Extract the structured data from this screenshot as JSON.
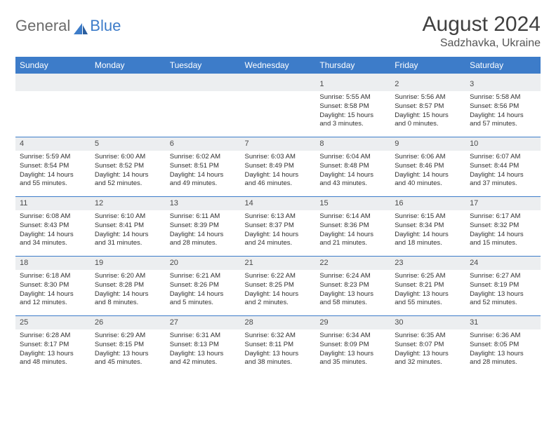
{
  "brand": {
    "part1": "General",
    "part2": "Blue"
  },
  "title": "August 2024",
  "location": "Sadzhavka, Ukraine",
  "colors": {
    "header_bar": "#3d7cc9",
    "num_bg": "#eceef0",
    "text": "#303030"
  },
  "dow": [
    "Sunday",
    "Monday",
    "Tuesday",
    "Wednesday",
    "Thursday",
    "Friday",
    "Saturday"
  ],
  "weeks": [
    [
      null,
      null,
      null,
      null,
      {
        "n": "1",
        "sr": "Sunrise: 5:55 AM",
        "ss": "Sunset: 8:58 PM",
        "dl1": "Daylight: 15 hours",
        "dl2": "and 3 minutes."
      },
      {
        "n": "2",
        "sr": "Sunrise: 5:56 AM",
        "ss": "Sunset: 8:57 PM",
        "dl1": "Daylight: 15 hours",
        "dl2": "and 0 minutes."
      },
      {
        "n": "3",
        "sr": "Sunrise: 5:58 AM",
        "ss": "Sunset: 8:56 PM",
        "dl1": "Daylight: 14 hours",
        "dl2": "and 57 minutes."
      }
    ],
    [
      {
        "n": "4",
        "sr": "Sunrise: 5:59 AM",
        "ss": "Sunset: 8:54 PM",
        "dl1": "Daylight: 14 hours",
        "dl2": "and 55 minutes."
      },
      {
        "n": "5",
        "sr": "Sunrise: 6:00 AM",
        "ss": "Sunset: 8:52 PM",
        "dl1": "Daylight: 14 hours",
        "dl2": "and 52 minutes."
      },
      {
        "n": "6",
        "sr": "Sunrise: 6:02 AM",
        "ss": "Sunset: 8:51 PM",
        "dl1": "Daylight: 14 hours",
        "dl2": "and 49 minutes."
      },
      {
        "n": "7",
        "sr": "Sunrise: 6:03 AM",
        "ss": "Sunset: 8:49 PM",
        "dl1": "Daylight: 14 hours",
        "dl2": "and 46 minutes."
      },
      {
        "n": "8",
        "sr": "Sunrise: 6:04 AM",
        "ss": "Sunset: 8:48 PM",
        "dl1": "Daylight: 14 hours",
        "dl2": "and 43 minutes."
      },
      {
        "n": "9",
        "sr": "Sunrise: 6:06 AM",
        "ss": "Sunset: 8:46 PM",
        "dl1": "Daylight: 14 hours",
        "dl2": "and 40 minutes."
      },
      {
        "n": "10",
        "sr": "Sunrise: 6:07 AM",
        "ss": "Sunset: 8:44 PM",
        "dl1": "Daylight: 14 hours",
        "dl2": "and 37 minutes."
      }
    ],
    [
      {
        "n": "11",
        "sr": "Sunrise: 6:08 AM",
        "ss": "Sunset: 8:43 PM",
        "dl1": "Daylight: 14 hours",
        "dl2": "and 34 minutes."
      },
      {
        "n": "12",
        "sr": "Sunrise: 6:10 AM",
        "ss": "Sunset: 8:41 PM",
        "dl1": "Daylight: 14 hours",
        "dl2": "and 31 minutes."
      },
      {
        "n": "13",
        "sr": "Sunrise: 6:11 AM",
        "ss": "Sunset: 8:39 PM",
        "dl1": "Daylight: 14 hours",
        "dl2": "and 28 minutes."
      },
      {
        "n": "14",
        "sr": "Sunrise: 6:13 AM",
        "ss": "Sunset: 8:37 PM",
        "dl1": "Daylight: 14 hours",
        "dl2": "and 24 minutes."
      },
      {
        "n": "15",
        "sr": "Sunrise: 6:14 AM",
        "ss": "Sunset: 8:36 PM",
        "dl1": "Daylight: 14 hours",
        "dl2": "and 21 minutes."
      },
      {
        "n": "16",
        "sr": "Sunrise: 6:15 AM",
        "ss": "Sunset: 8:34 PM",
        "dl1": "Daylight: 14 hours",
        "dl2": "and 18 minutes."
      },
      {
        "n": "17",
        "sr": "Sunrise: 6:17 AM",
        "ss": "Sunset: 8:32 PM",
        "dl1": "Daylight: 14 hours",
        "dl2": "and 15 minutes."
      }
    ],
    [
      {
        "n": "18",
        "sr": "Sunrise: 6:18 AM",
        "ss": "Sunset: 8:30 PM",
        "dl1": "Daylight: 14 hours",
        "dl2": "and 12 minutes."
      },
      {
        "n": "19",
        "sr": "Sunrise: 6:20 AM",
        "ss": "Sunset: 8:28 PM",
        "dl1": "Daylight: 14 hours",
        "dl2": "and 8 minutes."
      },
      {
        "n": "20",
        "sr": "Sunrise: 6:21 AM",
        "ss": "Sunset: 8:26 PM",
        "dl1": "Daylight: 14 hours",
        "dl2": "and 5 minutes."
      },
      {
        "n": "21",
        "sr": "Sunrise: 6:22 AM",
        "ss": "Sunset: 8:25 PM",
        "dl1": "Daylight: 14 hours",
        "dl2": "and 2 minutes."
      },
      {
        "n": "22",
        "sr": "Sunrise: 6:24 AM",
        "ss": "Sunset: 8:23 PM",
        "dl1": "Daylight: 13 hours",
        "dl2": "and 58 minutes."
      },
      {
        "n": "23",
        "sr": "Sunrise: 6:25 AM",
        "ss": "Sunset: 8:21 PM",
        "dl1": "Daylight: 13 hours",
        "dl2": "and 55 minutes."
      },
      {
        "n": "24",
        "sr": "Sunrise: 6:27 AM",
        "ss": "Sunset: 8:19 PM",
        "dl1": "Daylight: 13 hours",
        "dl2": "and 52 minutes."
      }
    ],
    [
      {
        "n": "25",
        "sr": "Sunrise: 6:28 AM",
        "ss": "Sunset: 8:17 PM",
        "dl1": "Daylight: 13 hours",
        "dl2": "and 48 minutes."
      },
      {
        "n": "26",
        "sr": "Sunrise: 6:29 AM",
        "ss": "Sunset: 8:15 PM",
        "dl1": "Daylight: 13 hours",
        "dl2": "and 45 minutes."
      },
      {
        "n": "27",
        "sr": "Sunrise: 6:31 AM",
        "ss": "Sunset: 8:13 PM",
        "dl1": "Daylight: 13 hours",
        "dl2": "and 42 minutes."
      },
      {
        "n": "28",
        "sr": "Sunrise: 6:32 AM",
        "ss": "Sunset: 8:11 PM",
        "dl1": "Daylight: 13 hours",
        "dl2": "and 38 minutes."
      },
      {
        "n": "29",
        "sr": "Sunrise: 6:34 AM",
        "ss": "Sunset: 8:09 PM",
        "dl1": "Daylight: 13 hours",
        "dl2": "and 35 minutes."
      },
      {
        "n": "30",
        "sr": "Sunrise: 6:35 AM",
        "ss": "Sunset: 8:07 PM",
        "dl1": "Daylight: 13 hours",
        "dl2": "and 32 minutes."
      },
      {
        "n": "31",
        "sr": "Sunrise: 6:36 AM",
        "ss": "Sunset: 8:05 PM",
        "dl1": "Daylight: 13 hours",
        "dl2": "and 28 minutes."
      }
    ]
  ]
}
